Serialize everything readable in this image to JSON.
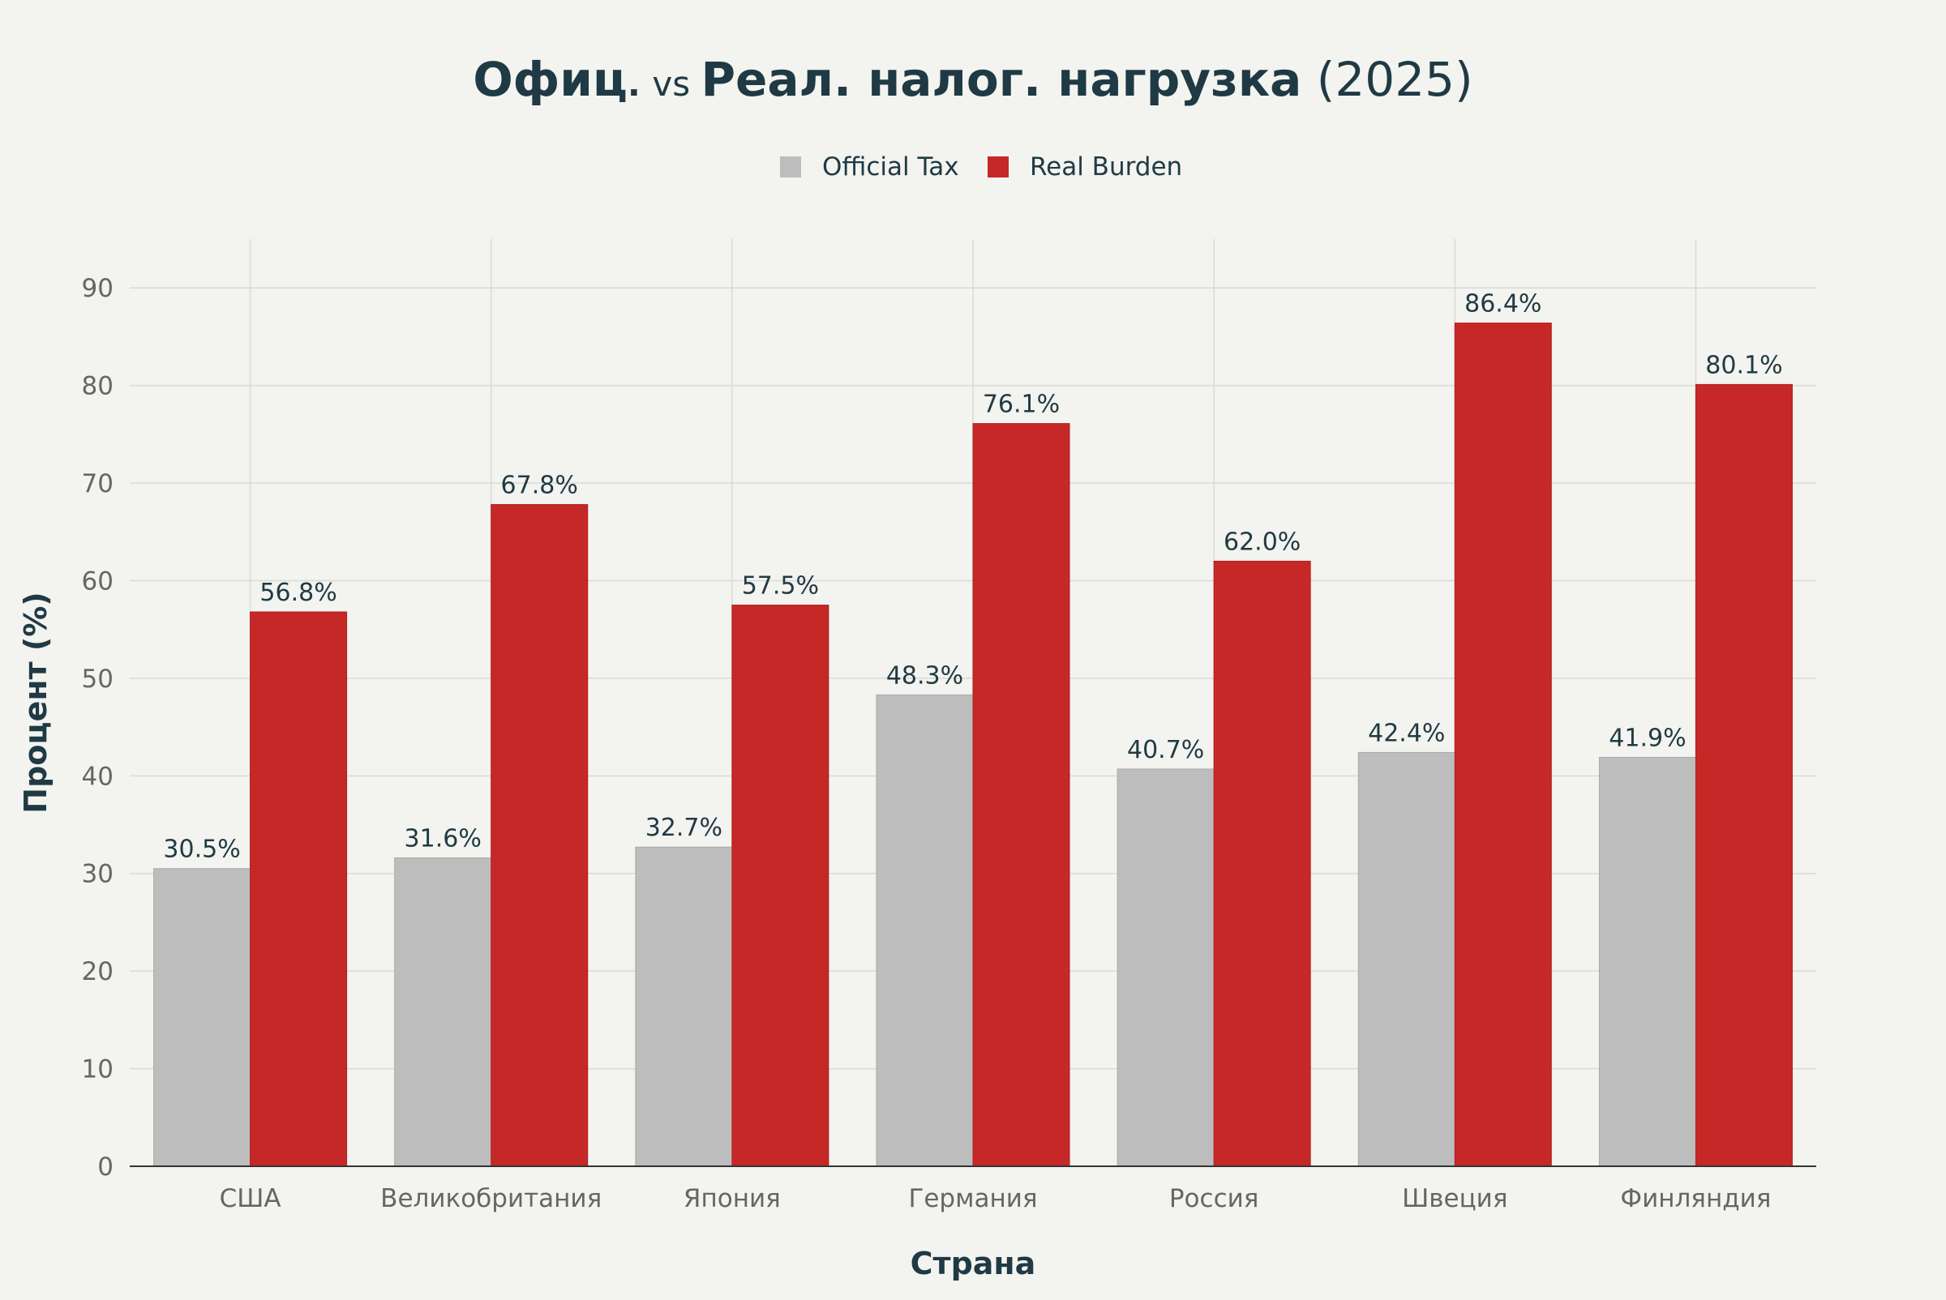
{
  "chart_data": {
    "type": "bar",
    "title_parts": [
      {
        "text": "Офиц",
        "bold": true,
        "size": "large"
      },
      {
        "text": ". ",
        "bold": true,
        "size": "small"
      },
      {
        "text": "vs ",
        "bold": false,
        "size": "small"
      },
      {
        "text": "Реал. налог. нагрузка",
        "bold": true,
        "size": "large"
      },
      {
        "text": " (2025)",
        "bold": false,
        "size": "large"
      }
    ],
    "xlabel": "Страна",
    "ylabel": "Процент (%)",
    "categories": [
      "США",
      "Великобритания",
      "Япония",
      "Германия",
      "Россия",
      "Швеция",
      "Финляндия"
    ],
    "series": [
      {
        "name": "Official Tax",
        "color": "#bdbdbd",
        "values": [
          30.5,
          31.6,
          32.7,
          48.3,
          40.7,
          42.4,
          41.9
        ]
      },
      {
        "name": "Real Burden",
        "color": "#c62828",
        "values": [
          56.8,
          67.8,
          57.5,
          76.1,
          62.0,
          86.4,
          80.1
        ]
      }
    ],
    "data_label_suffix": "%",
    "ylim": [
      0,
      95
    ],
    "yticks": [
      0,
      10,
      20,
      30,
      40,
      50,
      60,
      70,
      80,
      90
    ],
    "grid": true,
    "legend_position": "top-center",
    "colors": {
      "background": "#f3f3ef",
      "grid": "#d9d9d6",
      "axis": "#333333",
      "tick_text": "#666666",
      "label_text": "#1f3a44",
      "data_label_text": "#1f3a44"
    }
  }
}
